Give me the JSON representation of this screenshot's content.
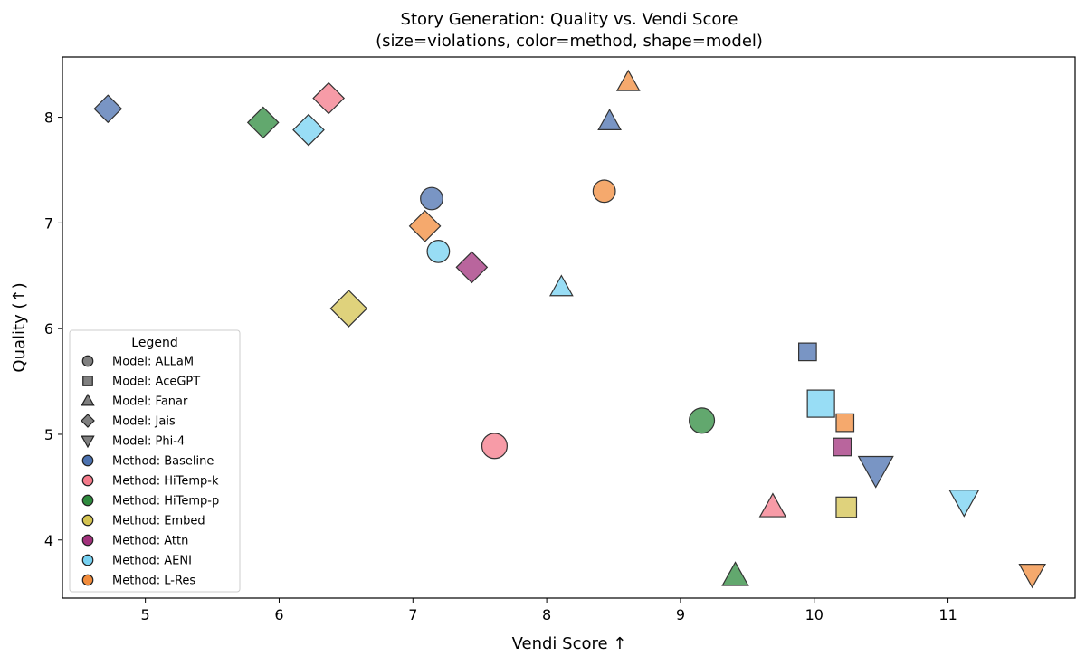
{
  "chart_data": {
    "type": "scatter",
    "title": "Story Generation: Quality vs. Vendi Score",
    "subtitle": "(size=violations, color=method, shape=model)",
    "xlabel": "Vendi Score ↑",
    "ylabel": "Quality (↑)",
    "xlim": [
      4.38,
      11.95
    ],
    "ylim": [
      3.45,
      8.57
    ],
    "xticks": [
      5,
      6,
      7,
      8,
      9,
      10,
      11
    ],
    "yticks": [
      4,
      5,
      6,
      7,
      8
    ],
    "grid": false,
    "legend_position": "lower-left",
    "legend_title": "Legend",
    "method_colors": {
      "Baseline": "#4c72b0",
      "HiTemp-k": "#f47a8a",
      "HiTemp-p": "#2e8b3e",
      "Embed": "#d4c350",
      "Attn": "#a2317c",
      "AENI": "#76d1f2",
      "L-Res": "#f28c3c"
    },
    "legend_items": [
      {
        "label": "Model: ALLaM",
        "shape": "circle",
        "color": "#808080"
      },
      {
        "label": "Model: AceGPT",
        "shape": "square",
        "color": "#808080"
      },
      {
        "label": "Model: Fanar",
        "shape": "triangle-up",
        "color": "#808080"
      },
      {
        "label": "Model: Jais",
        "shape": "diamond",
        "color": "#808080"
      },
      {
        "label": "Model: Phi-4",
        "shape": "triangle-down",
        "color": "#808080"
      },
      {
        "label": "Method: Baseline",
        "shape": "circle",
        "color": "#4c72b0"
      },
      {
        "label": "Method: HiTemp-k",
        "shape": "circle",
        "color": "#f47a8a"
      },
      {
        "label": "Method: HiTemp-p",
        "shape": "circle",
        "color": "#2e8b3e"
      },
      {
        "label": "Method: Embed",
        "shape": "circle",
        "color": "#d4c350"
      },
      {
        "label": "Method: Attn",
        "shape": "circle",
        "color": "#a2317c"
      },
      {
        "label": "Method: AENI",
        "shape": "circle",
        "color": "#76d1f2"
      },
      {
        "label": "Method: L-Res",
        "shape": "circle",
        "color": "#f28c3c"
      }
    ],
    "points": [
      {
        "model": "ALLaM",
        "method": "Baseline",
        "x": 7.14,
        "y": 7.23,
        "violations": 2
      },
      {
        "model": "ALLaM",
        "method": "HiTemp-k",
        "x": 7.61,
        "y": 4.89,
        "violations": 3
      },
      {
        "model": "ALLaM",
        "method": "HiTemp-p",
        "x": 9.16,
        "y": 5.13,
        "violations": 3
      },
      {
        "model": "ALLaM",
        "method": "AENI",
        "x": 7.19,
        "y": 6.73,
        "violations": 2
      },
      {
        "model": "ALLaM",
        "method": "L-Res",
        "x": 8.43,
        "y": 7.3,
        "violations": 2
      },
      {
        "model": "AceGPT",
        "method": "Baseline",
        "x": 9.95,
        "y": 5.78,
        "violations": 1
      },
      {
        "model": "AceGPT",
        "method": "AENI",
        "x": 10.05,
        "y": 5.29,
        "violations": 4
      },
      {
        "model": "AceGPT",
        "method": "L-Res",
        "x": 10.23,
        "y": 5.11,
        "violations": 1
      },
      {
        "model": "AceGPT",
        "method": "Attn",
        "x": 10.21,
        "y": 4.88,
        "violations": 1
      },
      {
        "model": "AceGPT",
        "method": "Embed",
        "x": 10.24,
        "y": 4.31,
        "violations": 2
      },
      {
        "model": "Fanar",
        "method": "L-Res",
        "x": 8.61,
        "y": 8.33,
        "violations": 1
      },
      {
        "model": "Fanar",
        "method": "Baseline",
        "x": 8.47,
        "y": 7.96,
        "violations": 1
      },
      {
        "model": "Fanar",
        "method": "AENI",
        "x": 8.11,
        "y": 6.39,
        "violations": 1
      },
      {
        "model": "Fanar",
        "method": "HiTemp-k",
        "x": 9.69,
        "y": 4.31,
        "violations": 2
      },
      {
        "model": "Fanar",
        "method": "HiTemp-p",
        "x": 9.41,
        "y": 3.66,
        "violations": 2
      },
      {
        "model": "Jais",
        "method": "Baseline",
        "x": 4.72,
        "y": 8.08,
        "violations": 2
      },
      {
        "model": "Jais",
        "method": "HiTemp-k",
        "x": 6.37,
        "y": 8.18,
        "violations": 3
      },
      {
        "model": "Jais",
        "method": "HiTemp-p",
        "x": 5.88,
        "y": 7.95,
        "violations": 3
      },
      {
        "model": "Jais",
        "method": "AENI",
        "x": 6.22,
        "y": 7.88,
        "violations": 3
      },
      {
        "model": "Jais",
        "method": "L-Res",
        "x": 7.09,
        "y": 6.97,
        "violations": 3
      },
      {
        "model": "Jais",
        "method": "Attn",
        "x": 7.44,
        "y": 6.58,
        "violations": 3
      },
      {
        "model": "Jais",
        "method": "Embed",
        "x": 6.52,
        "y": 6.19,
        "violations": 4
      },
      {
        "model": "Phi-4",
        "method": "Baseline",
        "x": 10.46,
        "y": 4.67,
        "violations": 4
      },
      {
        "model": "Phi-4",
        "method": "AENI",
        "x": 11.12,
        "y": 4.37,
        "violations": 3
      },
      {
        "model": "Phi-4",
        "method": "L-Res",
        "x": 11.63,
        "y": 3.68,
        "violations": 2
      }
    ]
  }
}
